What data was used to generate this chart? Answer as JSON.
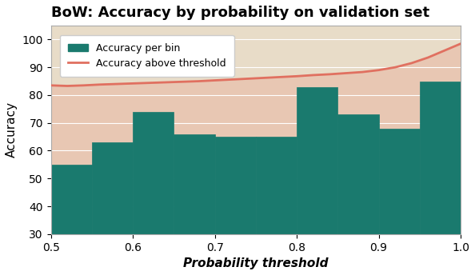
{
  "title": "BoW: Accuracy by probability on validation set",
  "xlabel": "Probability threshold",
  "ylabel": "Accuracy",
  "background_color": "#e8dcc8",
  "bar_color": "#1a7a6e",
  "line_color": "#e07060",
  "line_fill_color": "#e8c4b0",
  "bar_edges": [
    0.5,
    0.55,
    0.6,
    0.65,
    0.7,
    0.75,
    0.8,
    0.85,
    0.9,
    0.95,
    1.0
  ],
  "bar_heights": [
    55,
    63,
    74,
    66,
    65,
    65,
    83,
    73,
    68,
    85
  ],
  "line_x": [
    0.5,
    0.52,
    0.54,
    0.56,
    0.58,
    0.6,
    0.62,
    0.64,
    0.66,
    0.68,
    0.7,
    0.72,
    0.74,
    0.76,
    0.78,
    0.8,
    0.82,
    0.84,
    0.86,
    0.88,
    0.9,
    0.92,
    0.94,
    0.96,
    0.98,
    1.0
  ],
  "line_y": [
    83.5,
    83.3,
    83.5,
    83.8,
    84.0,
    84.2,
    84.4,
    84.6,
    84.8,
    85.0,
    85.3,
    85.6,
    85.9,
    86.2,
    86.5,
    86.8,
    87.2,
    87.5,
    87.9,
    88.3,
    89.0,
    90.0,
    91.5,
    93.5,
    96.0,
    98.5
  ],
  "ylim": [
    30,
    105
  ],
  "xlim": [
    0.5,
    1.0
  ],
  "yticks": [
    30,
    40,
    50,
    60,
    70,
    80,
    90,
    100
  ],
  "xticks": [
    0.5,
    0.6,
    0.7,
    0.8,
    0.9,
    1.0
  ],
  "legend_labels": [
    "Accuracy per bin",
    "Accuracy above threshold"
  ],
  "title_fontsize": 13,
  "label_fontsize": 11,
  "tick_fontsize": 10
}
